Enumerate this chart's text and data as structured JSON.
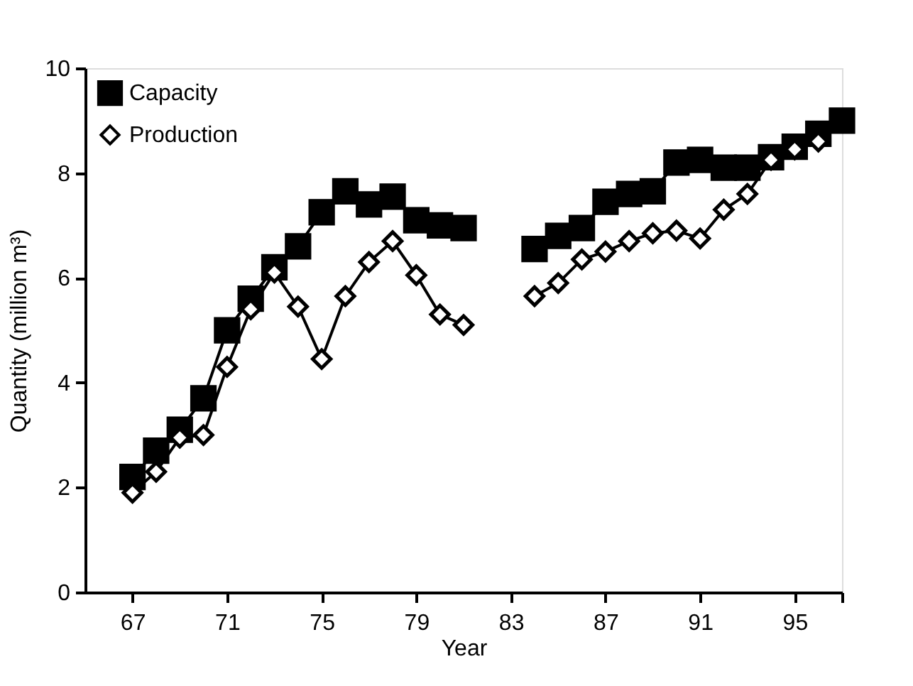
{
  "chart_data": {
    "type": "line",
    "xlabel": "Year",
    "ylabel": "Quantity (million m³)",
    "xlim": [
      65,
      97
    ],
    "xticks": [
      67,
      71,
      75,
      79,
      83,
      87,
      91,
      95,
      {
        "value": 97,
        "label": null
      }
    ],
    "ylim": [
      0,
      10
    ],
    "yticks": [
      0,
      2,
      4,
      6,
      8,
      10
    ],
    "grid": false,
    "legend": "top left",
    "series": [
      {
        "name": "Capacity",
        "color": "#000000",
        "marker": "square",
        "x": [
          67,
          68,
          69,
          70,
          71,
          72,
          73,
          74,
          75,
          76,
          77,
          78,
          79,
          80,
          81,
          82,
          83,
          84,
          85,
          86,
          87,
          88,
          89,
          90,
          91,
          92,
          93,
          94,
          95,
          96,
          97
        ],
        "values": [
          2.2,
          2.7,
          3.1,
          3.7,
          5.0,
          5.6,
          6.2,
          6.6,
          7.25,
          7.65,
          7.4,
          7.55,
          7.1,
          7.0,
          6.95,
          null,
          null,
          6.55,
          6.8,
          6.95,
          7.45,
          7.6,
          7.65,
          8.2,
          8.25,
          8.1,
          8.1,
          8.3,
          8.5,
          8.75,
          9.0
        ]
      },
      {
        "name": "Production",
        "color": "#000000",
        "marker": "diamond",
        "x": [
          67,
          68,
          69,
          70,
          71,
          72,
          73,
          74,
          75,
          76,
          77,
          78,
          79,
          80,
          81,
          82,
          83,
          84,
          85,
          86,
          87,
          88,
          89,
          90,
          91,
          92,
          93,
          94,
          95,
          96
        ],
        "values": [
          1.9,
          2.3,
          2.95,
          3.0,
          4.3,
          5.4,
          6.1,
          5.45,
          4.45,
          5.65,
          6.3,
          6.7,
          6.05,
          5.3,
          5.1,
          null,
          null,
          5.65,
          5.9,
          6.35,
          6.5,
          6.7,
          6.85,
          6.9,
          6.75,
          7.3,
          7.6,
          8.25,
          8.45,
          8.6
        ]
      }
    ]
  }
}
